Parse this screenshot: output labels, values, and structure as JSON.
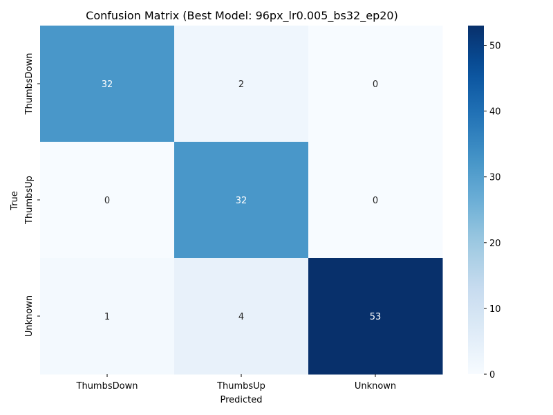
{
  "chart_data": {
    "type": "heatmap",
    "title": "Confusion Matrix (Best Model: 96px_lr0.005_bs32_ep20)",
    "xlabel": "Predicted",
    "ylabel": "True",
    "x_categories": [
      "ThumbsDown",
      "ThumbsUp",
      "Unknown"
    ],
    "y_categories": [
      "ThumbsDown",
      "ThumbsUp",
      "Unknown"
    ],
    "values": [
      [
        32,
        2,
        0
      ],
      [
        0,
        32,
        0
      ],
      [
        1,
        4,
        53
      ]
    ],
    "colorbar": {
      "range": [
        0,
        53
      ],
      "ticks": [
        0,
        10,
        20,
        30,
        40,
        50
      ]
    },
    "colormap": "Blues",
    "colors": {
      "low": "#f7fbff",
      "high": "#08306b"
    }
  }
}
